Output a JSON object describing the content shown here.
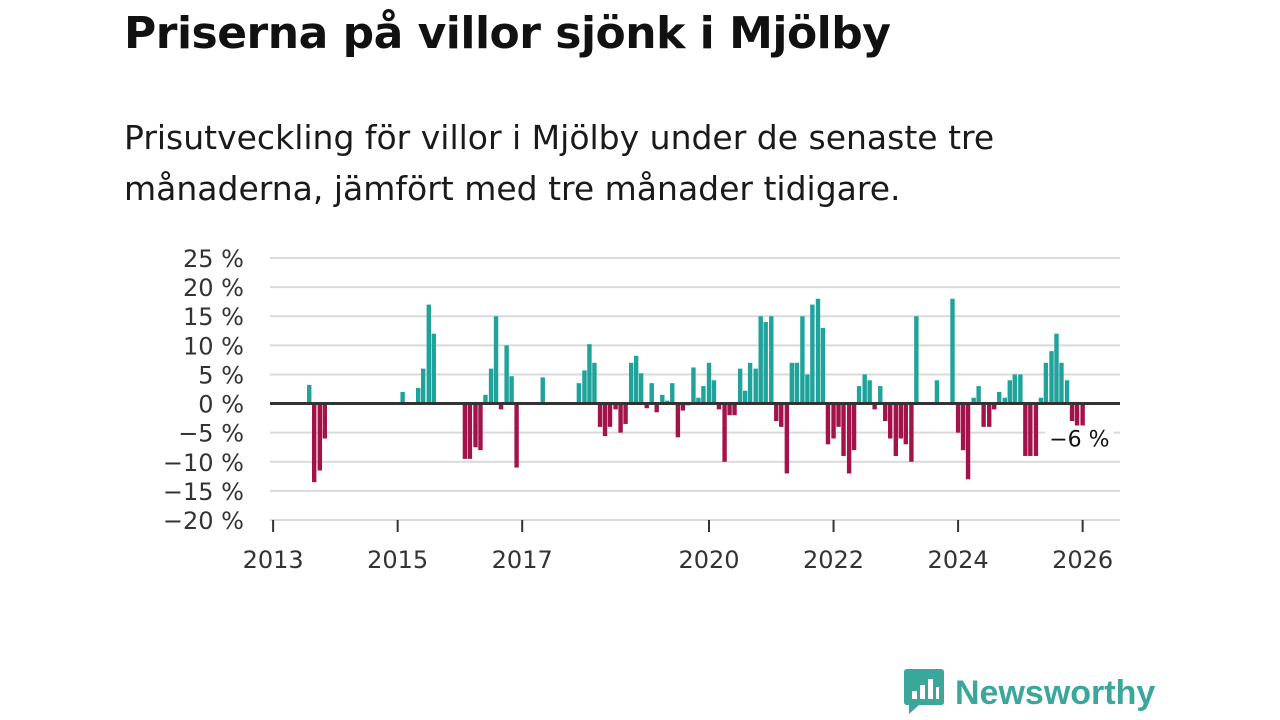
{
  "title": "Priserna på villor sjönk i Mjölby",
  "subtitle": "Prisutveckling för villor i Mjölby under de senaste tre månaderna, jämfört med tre månader tidigare.",
  "brand": {
    "name": "Newsworthy",
    "icon": "newsworthy-logo-icon"
  },
  "colors": {
    "positive": "#1fa39a",
    "negative": "#a3134a",
    "grid": "#d9d9d9",
    "zero": "#333333",
    "brand": "#3aa79a"
  },
  "chart_data": {
    "type": "bar",
    "title": "Priserna på villor sjönk i Mjölby",
    "xlabel": "",
    "ylabel": "",
    "y_ticks": [
      25,
      20,
      15,
      10,
      5,
      0,
      -5,
      -10,
      -15,
      -20
    ],
    "y_tick_labels": [
      "25 %",
      "20 %",
      "15 %",
      "10 %",
      "5 %",
      "0 %",
      "−5 %",
      "−10 %",
      "−15 %",
      "−20 %"
    ],
    "ylim": [
      -20,
      25
    ],
    "x_ticks": [
      2013,
      2015,
      2017,
      2020,
      2022,
      2024,
      2026
    ],
    "x_tick_labels": [
      "2013",
      "2015",
      "2017",
      "2020",
      "2022",
      "2024",
      "2026"
    ],
    "xlim": [
      2012.95,
      2026.6
    ],
    "grid": true,
    "annotation": {
      "label": "−6 %",
      "x": 2025.95,
      "value": -6
    },
    "x": [
      2013.58,
      2013.66,
      2013.75,
      2013.83,
      2015.08,
      2015.33,
      2015.41,
      2015.5,
      2015.58,
      2016.08,
      2016.16,
      2016.25,
      2016.33,
      2016.41,
      2016.5,
      2016.58,
      2016.66,
      2016.75,
      2016.83,
      2016.91,
      2017.33,
      2017.91,
      2018.0,
      2018.08,
      2018.16,
      2018.25,
      2018.33,
      2018.41,
      2018.5,
      2018.58,
      2018.66,
      2018.75,
      2018.83,
      2018.91,
      2019.0,
      2019.08,
      2019.16,
      2019.25,
      2019.33,
      2019.41,
      2019.5,
      2019.58,
      2019.66,
      2019.75,
      2019.83,
      2019.91,
      2020.0,
      2020.08,
      2020.16,
      2020.25,
      2020.33,
      2020.41,
      2020.5,
      2020.58,
      2020.66,
      2020.75,
      2020.83,
      2020.91,
      2021.0,
      2021.08,
      2021.16,
      2021.25,
      2021.33,
      2021.41,
      2021.5,
      2021.58,
      2021.66,
      2021.75,
      2021.83,
      2021.91,
      2022.0,
      2022.08,
      2022.16,
      2022.25,
      2022.33,
      2022.41,
      2022.5,
      2022.58,
      2022.66,
      2022.75,
      2022.83,
      2022.91,
      2023.0,
      2023.08,
      2023.16,
      2023.25,
      2023.33,
      2023.66,
      2023.91,
      2024.0,
      2024.08,
      2024.16,
      2024.25,
      2024.33,
      2024.41,
      2024.5,
      2024.58,
      2024.66,
      2024.75,
      2024.83,
      2024.91,
      2025.0,
      2025.08,
      2025.16,
      2025.25,
      2025.33,
      2025.41,
      2025.5,
      2025.58,
      2025.66,
      2025.75,
      2025.83,
      2025.91,
      2026.0
    ],
    "values": [
      3.2,
      -13.5,
      -11.5,
      -6,
      2,
      2.7,
      6,
      17,
      12,
      -9.5,
      -9.5,
      -7.5,
      -8,
      1.5,
      6,
      15,
      -1,
      10,
      4.7,
      -11,
      4.5,
      3.5,
      5.7,
      10.2,
      7,
      -4,
      -5.6,
      -4,
      -1,
      -5,
      -3.5,
      7,
      8.2,
      5.2,
      -0.8,
      3.5,
      -1.5,
      1.5,
      0.5,
      3.5,
      -5.8,
      -1.2,
      -0.3,
      6.2,
      1,
      3,
      7,
      4,
      -1,
      -10,
      -2,
      -2,
      6,
      2.2,
      7,
      6,
      15,
      14,
      15,
      -3,
      -4,
      -12,
      7,
      7,
      15,
      5,
      17,
      18,
      13,
      -7,
      -6,
      -4,
      -9,
      -12,
      -8,
      3,
      5,
      4,
      -1,
      3,
      -3,
      -6,
      -9,
      -6,
      -7,
      -10,
      15,
      4,
      18,
      -5,
      -8,
      -13,
      1,
      3,
      -4,
      -4,
      -1,
      2,
      1,
      4,
      5,
      5,
      -9,
      -9,
      -9,
      1,
      7,
      9,
      12,
      7,
      4,
      -3,
      -6,
      -6
    ]
  }
}
